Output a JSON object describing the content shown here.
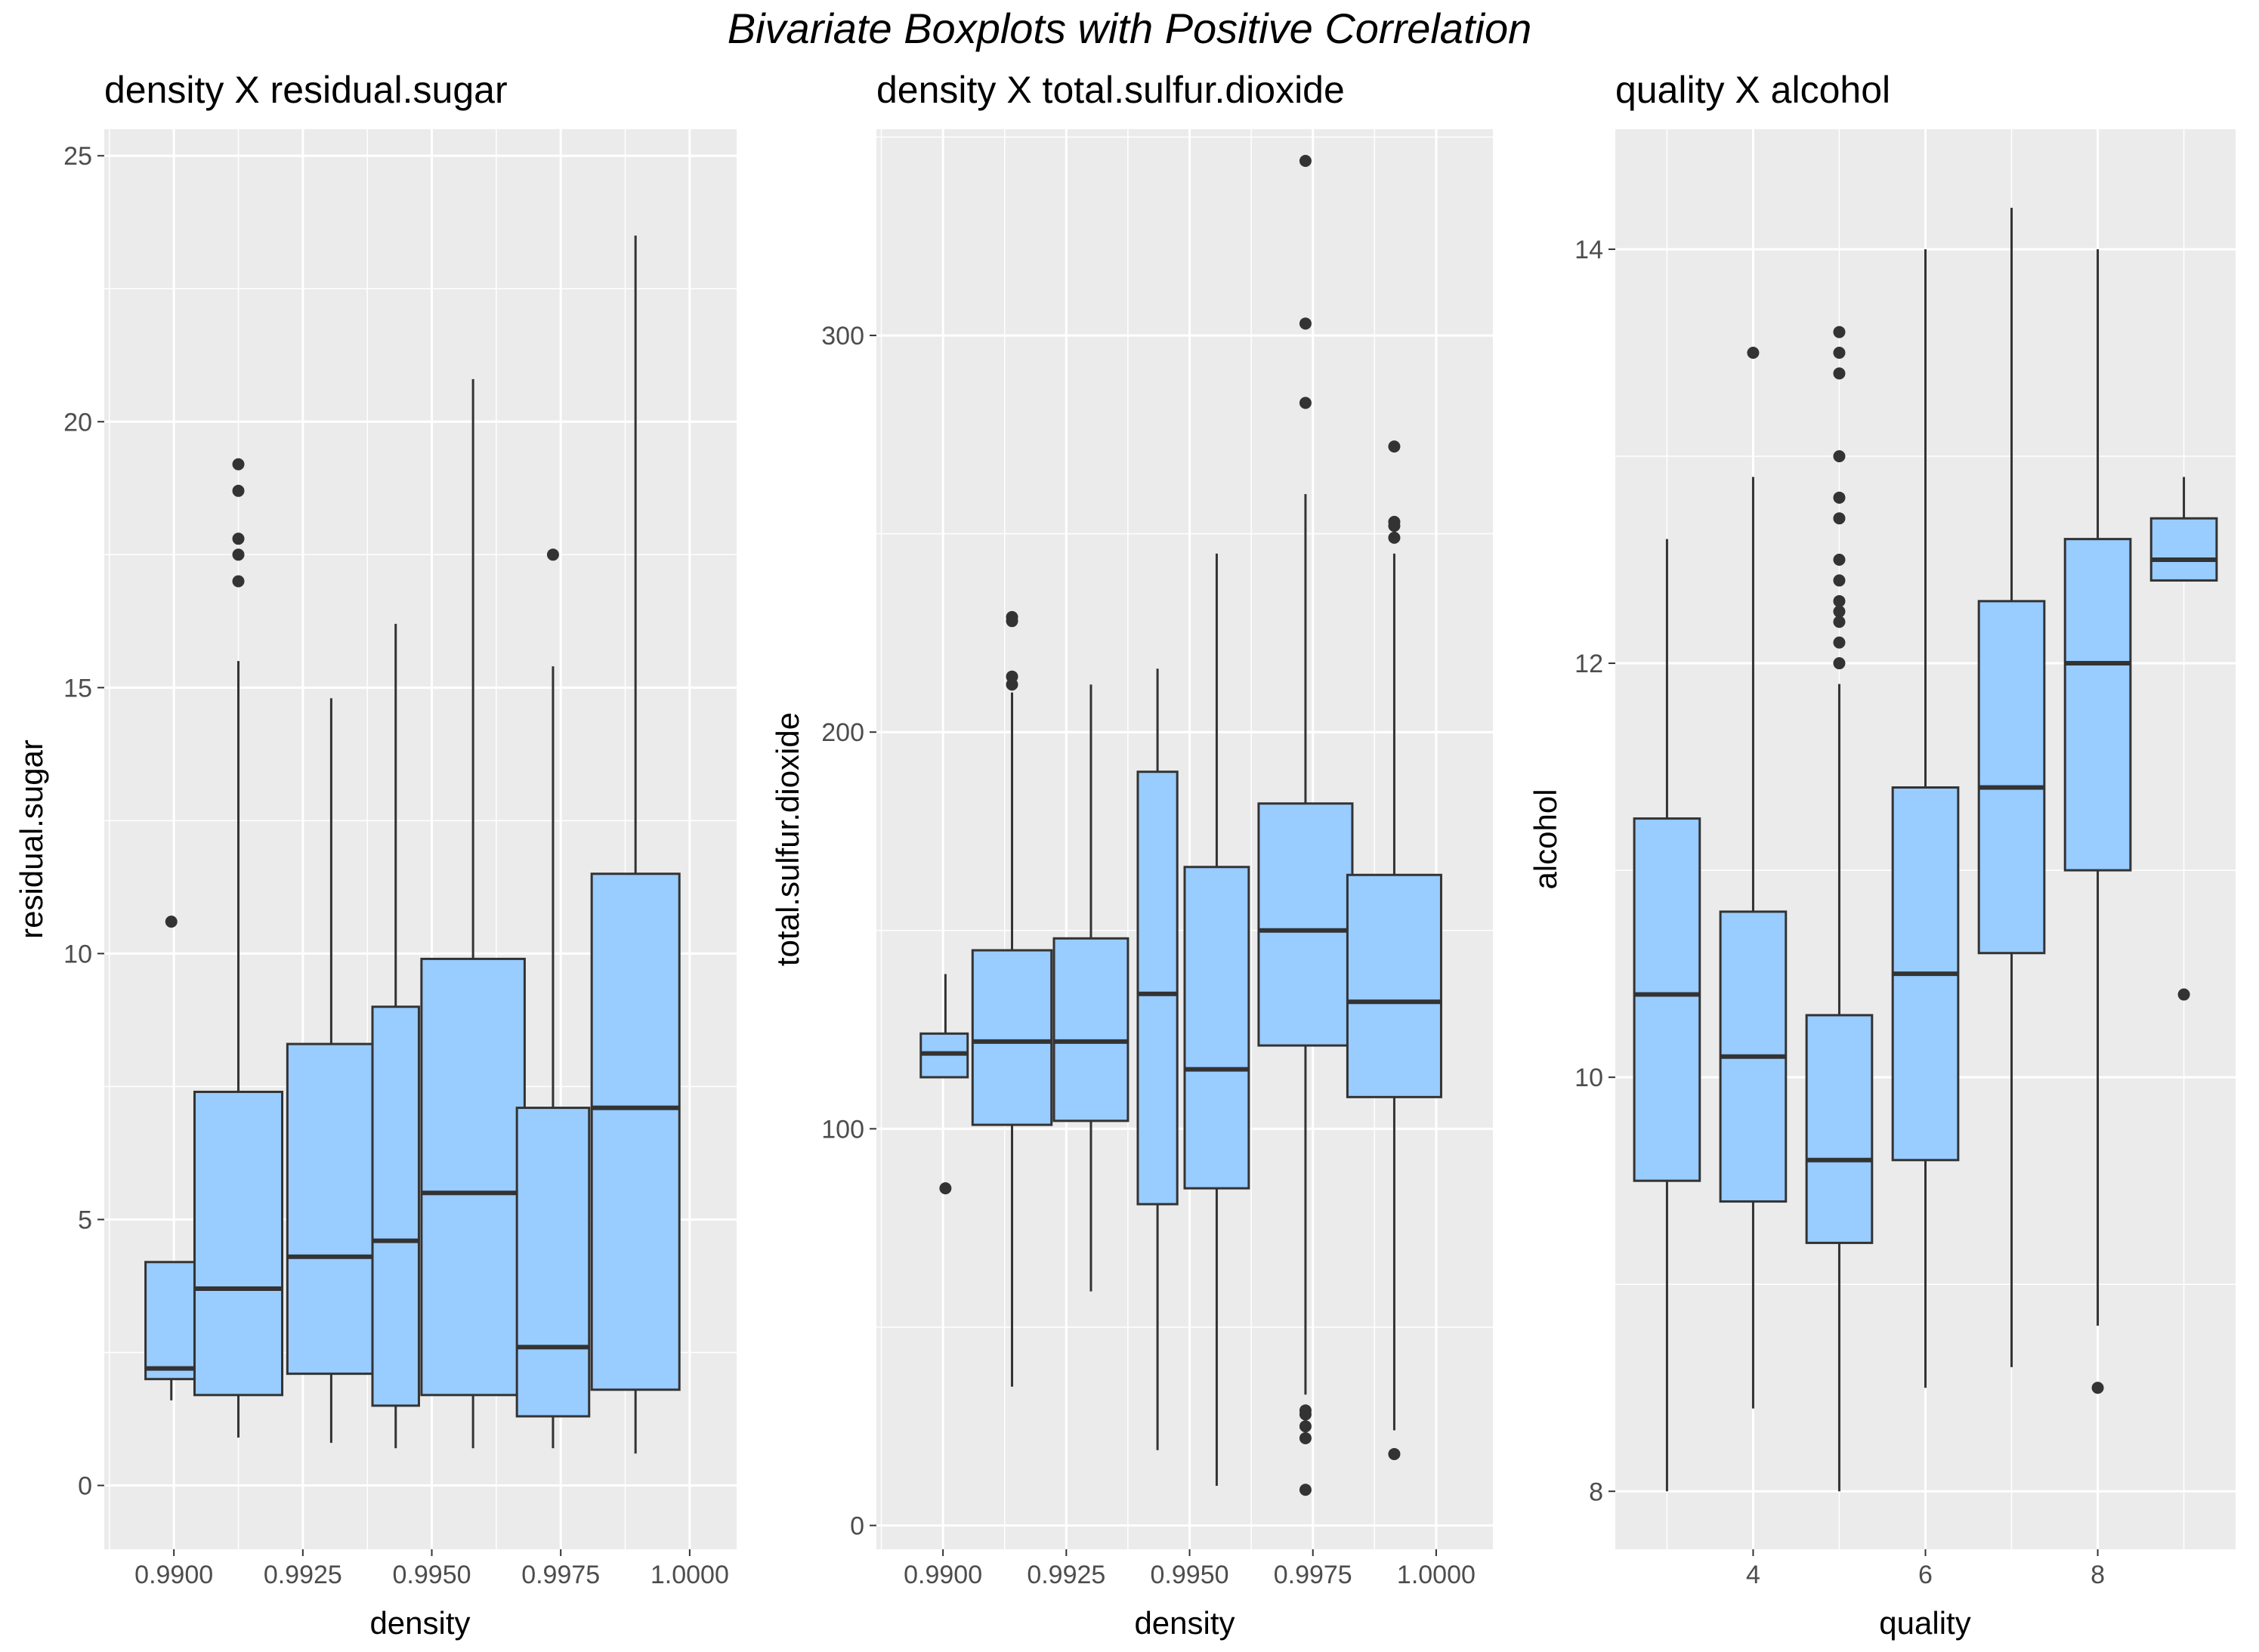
{
  "figure_title": "Bivariate Boxplots with Positive Correlation",
  "colors": {
    "panel_bg": "#EBEBEB",
    "grid": "#FFFFFF",
    "box_fill": "#99CCFF",
    "box_stroke": "#333333",
    "tick_text": "#4D4D4D",
    "axis_text": "#000000"
  },
  "chart_data": [
    {
      "type": "boxplot",
      "title": "density X residual.sugar",
      "xlabel": "density",
      "ylabel": "residual.sugar",
      "xlim": [
        0.98865,
        1.00091
      ],
      "ylim": [
        -1.2,
        25.5
      ],
      "x_ticks": [
        0.99,
        0.9925,
        0.995,
        0.9975,
        1.0
      ],
      "x_tick_labels": [
        "0.9900",
        "0.9925",
        "0.9950",
        "0.9975",
        "1.0000"
      ],
      "y_ticks": [
        0,
        5,
        10,
        15,
        20,
        25
      ],
      "y_tick_labels": [
        "0",
        "5",
        "10",
        "15",
        "20",
        "25"
      ],
      "grid": true,
      "boxes": [
        {
          "x": 0.98995,
          "x0": 0.98945,
          "x1": 0.99045,
          "lower_whisker": 1.6,
          "q1": 2.0,
          "median": 2.2,
          "q3": 4.2,
          "upper_whisker": 4.2,
          "outliers": [
            10.6
          ]
        },
        {
          "x": 0.99125,
          "x0": 0.9904,
          "x1": 0.9921,
          "lower_whisker": 0.9,
          "q1": 1.7,
          "median": 3.7,
          "q3": 7.4,
          "upper_whisker": 15.5,
          "outliers": [
            17.0,
            17.5,
            17.8,
            18.7,
            19.2
          ]
        },
        {
          "x": 0.99305,
          "x0": 0.9922,
          "x1": 0.9939,
          "lower_whisker": 0.8,
          "q1": 2.1,
          "median": 4.3,
          "q3": 8.3,
          "upper_whisker": 14.8,
          "outliers": []
        },
        {
          "x": 0.9943,
          "x0": 0.99385,
          "x1": 0.99475,
          "lower_whisker": 0.7,
          "q1": 1.5,
          "median": 4.6,
          "q3": 9.0,
          "upper_whisker": 16.2,
          "outliers": []
        },
        {
          "x": 0.9958,
          "x0": 0.9948,
          "x1": 0.9968,
          "lower_whisker": 0.7,
          "q1": 1.7,
          "median": 5.5,
          "q3": 9.9,
          "upper_whisker": 20.8,
          "outliers": []
        },
        {
          "x": 0.99735,
          "x0": 0.99665,
          "x1": 0.99805,
          "lower_whisker": 0.7,
          "q1": 1.3,
          "median": 2.6,
          "q3": 7.1,
          "upper_whisker": 15.4,
          "outliers": [
            17.5
          ]
        },
        {
          "x": 0.99895,
          "x0": 0.9981,
          "x1": 0.9998,
          "lower_whisker": 0.6,
          "q1": 1.8,
          "median": 7.1,
          "q3": 11.5,
          "upper_whisker": 23.5,
          "outliers": []
        }
      ]
    },
    {
      "type": "boxplot",
      "title": "density X total.sulfur.dioxide",
      "xlabel": "density",
      "ylabel": "total.sulfur.dioxide",
      "xlim": [
        0.98865,
        1.00115
      ],
      "ylim": [
        -6,
        352
      ],
      "x_ticks": [
        0.99,
        0.9925,
        0.995,
        0.9975,
        1.0
      ],
      "x_tick_labels": [
        "0.9900",
        "0.9925",
        "0.9950",
        "0.9975",
        "1.0000"
      ],
      "y_ticks": [
        0,
        100,
        200,
        300
      ],
      "y_tick_labels": [
        "0",
        "100",
        "200",
        "300"
      ],
      "grid": true,
      "boxes": [
        {
          "x": 0.99005,
          "x0": 0.98955,
          "x1": 0.9905,
          "lower_whisker": 113,
          "q1": 113,
          "median": 119,
          "q3": 124,
          "upper_whisker": 139,
          "outliers": [
            85
          ]
        },
        {
          "x": 0.9914,
          "x0": 0.9906,
          "x1": 0.9922,
          "lower_whisker": 35,
          "q1": 101,
          "median": 122,
          "q3": 145,
          "upper_whisker": 210,
          "outliers": [
            212,
            214,
            228,
            229
          ]
        },
        {
          "x": 0.993,
          "x0": 0.99225,
          "x1": 0.99375,
          "lower_whisker": 59,
          "q1": 102,
          "median": 122,
          "q3": 148,
          "upper_whisker": 212,
          "outliers": []
        },
        {
          "x": 0.99435,
          "x0": 0.99395,
          "x1": 0.99475,
          "lower_whisker": 19,
          "q1": 81,
          "median": 134,
          "q3": 190,
          "upper_whisker": 216,
          "outliers": []
        },
        {
          "x": 0.99555,
          "x0": 0.9949,
          "x1": 0.9962,
          "lower_whisker": 10,
          "q1": 85,
          "median": 115,
          "q3": 166,
          "upper_whisker": 245,
          "outliers": []
        },
        {
          "x": 0.99735,
          "x0": 0.9964,
          "x1": 0.9983,
          "lower_whisker": 33,
          "q1": 121,
          "median": 150,
          "q3": 182,
          "upper_whisker": 260,
          "outliers": [
            9,
            22,
            25,
            28,
            29,
            283,
            303,
            344
          ]
        },
        {
          "x": 0.99915,
          "x0": 0.9982,
          "x1": 1.0001,
          "lower_whisker": 24,
          "q1": 108,
          "median": 132,
          "q3": 164,
          "upper_whisker": 245,
          "outliers": [
            18,
            249,
            252,
            253,
            272
          ]
        }
      ]
    },
    {
      "type": "boxplot",
      "title": "quality X alcohol",
      "xlabel": "quality",
      "ylabel": "alcohol",
      "xlim": [
        2.4,
        9.6
      ],
      "ylim": [
        7.72,
        14.58
      ],
      "x_ticks": [
        4,
        6,
        8
      ],
      "x_tick_labels": [
        "4",
        "6",
        "8"
      ],
      "y_ticks": [
        8,
        10,
        12,
        14
      ],
      "y_tick_labels": [
        "8",
        "10",
        "12",
        "14"
      ],
      "grid": true,
      "boxes": [
        {
          "x": 3,
          "x0": 2.62,
          "x1": 3.38,
          "lower_whisker": 8.0,
          "q1": 9.5,
          "median": 10.4,
          "q3": 11.25,
          "upper_whisker": 12.6,
          "outliers": []
        },
        {
          "x": 4,
          "x0": 3.62,
          "x1": 4.38,
          "lower_whisker": 8.4,
          "q1": 9.4,
          "median": 10.1,
          "q3": 10.8,
          "upper_whisker": 12.9,
          "outliers": [
            13.5
          ]
        },
        {
          "x": 5,
          "x0": 4.62,
          "x1": 5.38,
          "lower_whisker": 8.0,
          "q1": 9.2,
          "median": 9.6,
          "q3": 10.3,
          "upper_whisker": 11.9,
          "outliers": [
            12.0,
            12.1,
            12.2,
            12.25,
            12.3,
            12.4,
            12.5,
            12.7,
            12.8,
            13.0,
            13.4,
            13.5,
            13.6
          ]
        },
        {
          "x": 6,
          "x0": 5.62,
          "x1": 6.38,
          "lower_whisker": 8.5,
          "q1": 9.6,
          "median": 10.5,
          "q3": 11.4,
          "upper_whisker": 14.0,
          "outliers": []
        },
        {
          "x": 7,
          "x0": 6.62,
          "x1": 7.38,
          "lower_whisker": 8.6,
          "q1": 10.6,
          "median": 11.4,
          "q3": 12.3,
          "upper_whisker": 14.2,
          "outliers": []
        },
        {
          "x": 8,
          "x0": 7.62,
          "x1": 8.38,
          "lower_whisker": 8.8,
          "q1": 11.0,
          "median": 12.0,
          "q3": 12.6,
          "upper_whisker": 14.0,
          "outliers": [
            8.5
          ]
        },
        {
          "x": 9,
          "x0": 8.62,
          "x1": 9.38,
          "lower_whisker": 12.4,
          "q1": 12.4,
          "median": 12.5,
          "q3": 12.7,
          "upper_whisker": 12.9,
          "outliers": [
            10.4
          ]
        }
      ]
    }
  ]
}
